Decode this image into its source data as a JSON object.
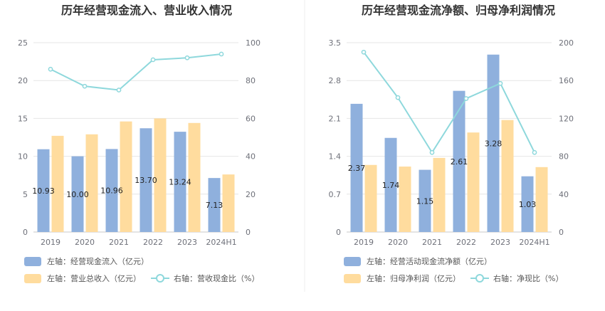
{
  "chart_data": [
    {
      "type": "bar",
      "title": "历年经营现金流入、营业收入情况",
      "categories": [
        "2019",
        "2020",
        "2021",
        "2022",
        "2023",
        "2024H1"
      ],
      "y_left": {
        "min": 0,
        "max": 25,
        "ticks": [
          0,
          5,
          10,
          15,
          20,
          25
        ]
      },
      "y_right": {
        "min": 0,
        "max": 100,
        "ticks": [
          0,
          20,
          40,
          60,
          80,
          100
        ]
      },
      "series": [
        {
          "name": "左轴：经营现金流入（亿元）",
          "kind": "bar",
          "axis": "left",
          "color": "#8fb0dd",
          "values": [
            10.93,
            10.0,
            10.96,
            13.7,
            13.24,
            7.13
          ],
          "labels": [
            "10.93",
            "10.00",
            "10.96",
            "13.70",
            "13.24",
            "7.13"
          ]
        },
        {
          "name": "左轴：营业总收入（亿元）",
          "kind": "bar",
          "axis": "left",
          "color": "#ffdc9e",
          "values": [
            12.7,
            12.9,
            14.6,
            15.0,
            14.4,
            7.6
          ]
        },
        {
          "name": "右轴：营收现金比（%）",
          "kind": "line",
          "axis": "right",
          "color": "#8ed8dc",
          "values": [
            86,
            77,
            75,
            91,
            92,
            94
          ]
        }
      ],
      "legend_position": "bottom",
      "grid": true
    },
    {
      "type": "bar",
      "title": "历年经营现金流净额、归母净利润情况",
      "categories": [
        "2019",
        "2020",
        "2021",
        "2022",
        "2023",
        "2024H1"
      ],
      "y_left": {
        "min": 0,
        "max": 3.5,
        "ticks": [
          0,
          0.7,
          1.4,
          2.1,
          2.8,
          3.5
        ],
        "tick_labels": [
          "0",
          "0.7",
          "1.4",
          "2.1",
          "2.8",
          "3.5"
        ]
      },
      "y_right": {
        "min": 0,
        "max": 200,
        "ticks": [
          0,
          40,
          80,
          120,
          160,
          200
        ]
      },
      "series": [
        {
          "name": "左轴：经营活动现金流净额（亿元）",
          "kind": "bar",
          "axis": "left",
          "color": "#8fb0dd",
          "values": [
            2.37,
            1.74,
            1.15,
            2.61,
            3.28,
            1.03
          ],
          "labels": [
            "2.37",
            "1.74",
            "1.15",
            "2.61",
            "3.28",
            "1.03"
          ]
        },
        {
          "name": "左轴：归母净利润（亿元）",
          "kind": "bar",
          "axis": "left",
          "color": "#ffdc9e",
          "values": [
            1.24,
            1.21,
            1.37,
            1.84,
            2.07,
            1.2
          ]
        },
        {
          "name": "右轴：净现比（%）",
          "kind": "line",
          "axis": "right",
          "color": "#8ed8dc",
          "values": [
            190,
            142,
            84,
            141,
            157,
            84
          ]
        }
      ],
      "legend_position": "bottom",
      "grid": true
    }
  ]
}
